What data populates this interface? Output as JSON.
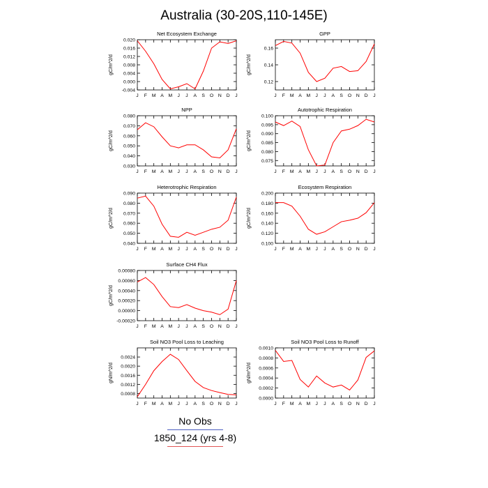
{
  "title": "Australia (30-20S,110-145E)",
  "legend": {
    "obs_label": "No Obs",
    "model_label": "1850_124 (yrs 4-8)",
    "obs_color": "#4a5dbf",
    "model_color": "#e05555"
  },
  "months": [
    "J",
    "F",
    "M",
    "A",
    "M",
    "J",
    "J",
    "A",
    "S",
    "O",
    "N",
    "D",
    "J"
  ],
  "chart_data": [
    {
      "type": "line",
      "title": "Net Ecosystem Exchange",
      "ylabel": "gC/m^2/d",
      "ylim": [
        -0.004,
        0.02
      ],
      "yticks": [
        "-0.004",
        "0.000",
        "0.004",
        "0.008",
        "0.012",
        "0.016",
        "0.020"
      ],
      "ytick_values": [
        -0.004,
        0.0,
        0.004,
        0.008,
        0.012,
        0.016,
        0.02
      ],
      "values": [
        0.0195,
        0.0145,
        0.0085,
        0.001,
        -0.0035,
        -0.0025,
        -0.001,
        -0.0035,
        0.005,
        0.016,
        0.019,
        0.0182,
        0.0195
      ]
    },
    {
      "type": "line",
      "title": "GPP",
      "ylabel": "gC/m^2/d",
      "ylim": [
        0.11,
        0.17
      ],
      "yticks": [
        "0.12",
        "0.14",
        "0.16"
      ],
      "ytick_values": [
        0.12,
        0.14,
        0.16
      ],
      "values": [
        0.163,
        0.168,
        0.166,
        0.154,
        0.131,
        0.12,
        0.124,
        0.136,
        0.138,
        0.132,
        0.133,
        0.144,
        0.165
      ]
    },
    {
      "type": "line",
      "title": "NPP",
      "ylabel": "gC/m^2/d",
      "ylim": [
        0.03,
        0.08
      ],
      "yticks": [
        "0.030",
        "0.040",
        "0.050",
        "0.060",
        "0.070",
        "0.080"
      ],
      "ytick_values": [
        0.03,
        0.04,
        0.05,
        0.06,
        0.07,
        0.08
      ],
      "values": [
        0.066,
        0.073,
        0.069,
        0.059,
        0.05,
        0.048,
        0.051,
        0.051,
        0.046,
        0.039,
        0.038,
        0.046,
        0.067
      ]
    },
    {
      "type": "line",
      "title": "Autotrophic Respiration",
      "ylabel": "gC/m^2/d",
      "ylim": [
        0.072,
        0.1
      ],
      "yticks": [
        "0.075",
        "0.080",
        "0.085",
        "0.090",
        "0.095",
        "0.100"
      ],
      "ytick_values": [
        0.075,
        0.08,
        0.085,
        0.09,
        0.095,
        0.1
      ],
      "values": [
        0.0965,
        0.0945,
        0.097,
        0.094,
        0.081,
        0.072,
        0.0725,
        0.085,
        0.0915,
        0.0925,
        0.0945,
        0.098,
        0.0965
      ]
    },
    {
      "type": "line",
      "title": "Heterotrophic Respiration",
      "ylabel": "gC/m^2/d",
      "ylim": [
        0.04,
        0.09
      ],
      "yticks": [
        "0.040",
        "0.050",
        "0.060",
        "0.070",
        "0.080",
        "0.090"
      ],
      "ytick_values": [
        0.04,
        0.05,
        0.06,
        0.07,
        0.08,
        0.09
      ],
      "values": [
        0.085,
        0.087,
        0.077,
        0.059,
        0.047,
        0.046,
        0.051,
        0.048,
        0.051,
        0.054,
        0.056,
        0.063,
        0.086
      ]
    },
    {
      "type": "line",
      "title": "Ecosystem Respiration",
      "ylabel": "gC/m^2/d",
      "ylim": [
        0.1,
        0.2
      ],
      "yticks": [
        "0.100",
        "0.120",
        "0.140",
        "0.160",
        "0.180",
        "0.200"
      ],
      "ytick_values": [
        0.1,
        0.12,
        0.14,
        0.16,
        0.18,
        0.2
      ],
      "values": [
        0.181,
        0.181,
        0.174,
        0.154,
        0.128,
        0.118,
        0.123,
        0.133,
        0.143,
        0.146,
        0.15,
        0.161,
        0.181
      ]
    },
    {
      "type": "line",
      "title": "Surface CH4 Flux",
      "ylabel": "gC/m^2/d",
      "ylim": [
        -0.0002,
        0.0008
      ],
      "yticks": [
        "-0.00020",
        "0.00000",
        "0.00020",
        "0.00040",
        "0.00060",
        "0.00080"
      ],
      "ytick_values": [
        -0.0002,
        0.0,
        0.0002,
        0.0004,
        0.0006,
        0.0008
      ],
      "values": [
        0.00057,
        0.00066,
        0.00052,
        0.00028,
        8e-05,
        6e-05,
        0.00012,
        5e-05,
        0.0,
        -3e-05,
        -8e-05,
        3e-05,
        0.0006
      ]
    },
    {
      "type": "line",
      "title": "Soil NO3 Pool Loss to Leaching",
      "ylabel": "gN/m^2/d",
      "ylim": [
        0.0006,
        0.0028
      ],
      "yticks": [
        "0.0008",
        "0.0012",
        "0.0016",
        "0.0020",
        "0.0024"
      ],
      "ytick_values": [
        0.0008,
        0.0012,
        0.0016,
        0.002,
        0.0024
      ],
      "values": [
        0.00066,
        0.0012,
        0.0018,
        0.0022,
        0.00252,
        0.00229,
        0.0018,
        0.00133,
        0.00106,
        0.00093,
        0.00084,
        0.00076,
        0.00074
      ]
    },
    {
      "type": "line",
      "title": "Soil NO3 Pool Loss to Runoff",
      "ylabel": "gN/m^2/d",
      "ylim": [
        0.0,
        0.001
      ],
      "yticks": [
        "0.0000",
        "0.0002",
        "0.0004",
        "0.0006",
        "0.0008",
        "0.0010"
      ],
      "ytick_values": [
        0.0,
        0.0002,
        0.0004,
        0.0006,
        0.0008,
        0.001
      ],
      "values": [
        0.00095,
        0.00073,
        0.00075,
        0.00037,
        0.00022,
        0.00044,
        0.0003,
        0.00022,
        0.00026,
        0.00016,
        0.00036,
        0.00081,
        0.00094
      ]
    }
  ]
}
